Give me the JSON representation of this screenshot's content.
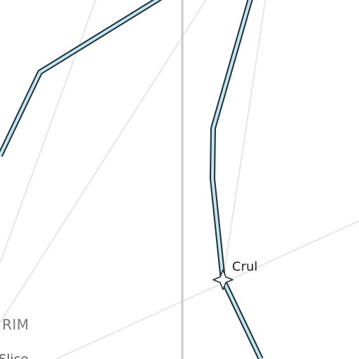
{
  "map": {
    "background_color": "#ffffff",
    "grid_line_color": "#e6e6e6",
    "divider_line_color": "#c8c8c8",
    "route_fill_color": "#bfe6f2",
    "route_outline_color": "#1f2f36",
    "places": [
      {
        "name": "Crul",
        "icon": "star-marker-icon"
      }
    ],
    "region_label": "RIM",
    "partial_label": "Slice"
  }
}
